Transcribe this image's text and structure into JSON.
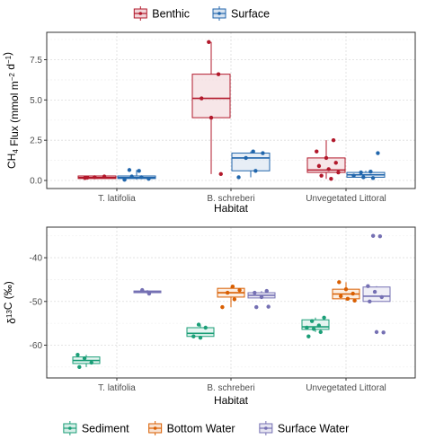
{
  "chart_data": [
    {
      "type": "box",
      "legend": [
        {
          "name": "Benthic",
          "color": "#b2182b"
        },
        {
          "name": "Surface",
          "color": "#2166ac"
        }
      ],
      "legend_position": "top",
      "xlabel": "Habitat",
      "ylabel_parts": [
        "CH",
        "4",
        " Flux (mmol m",
        "−2",
        " d",
        "−1",
        ")"
      ],
      "categories": [
        "T. latifolia",
        "B. schreberi",
        "Unvegetated Littoral"
      ],
      "ylim": [
        -0.5,
        9.2
      ],
      "yticks": [
        0.0,
        2.5,
        5.0,
        7.5
      ],
      "ytick_labels": [
        "0.0",
        "2.5",
        "5.0",
        "7.5"
      ],
      "grid": true,
      "groups": [
        {
          "category": "T. latifolia",
          "series": "Benthic",
          "box": {
            "min": 0.1,
            "q1": 0.12,
            "median": 0.18,
            "q3": 0.28,
            "max": 0.3
          },
          "points": [
            0.15,
            0.2,
            0.25,
            0.18
          ]
        },
        {
          "category": "T. latifolia",
          "series": "Surface",
          "box": {
            "min": 0.05,
            "q1": 0.12,
            "median": 0.18,
            "q3": 0.28,
            "max": 0.65
          },
          "points": [
            0.65,
            0.6,
            0.1,
            0.25,
            0.2,
            0.05
          ]
        },
        {
          "category": "B. schreberi",
          "series": "Benthic",
          "box": {
            "min": 0.4,
            "q1": 3.9,
            "median": 5.1,
            "q3": 6.6,
            "max": 8.6
          },
          "points": [
            8.6,
            6.6,
            5.1,
            3.9,
            0.4
          ]
        },
        {
          "category": "B. schreberi",
          "series": "Surface",
          "box": {
            "min": 0.2,
            "q1": 0.6,
            "median": 1.4,
            "q3": 1.7,
            "max": 1.8
          },
          "points": [
            1.8,
            1.7,
            1.4,
            0.6,
            0.2
          ]
        },
        {
          "category": "Unvegetated Littoral",
          "series": "Benthic",
          "box": {
            "min": 0.1,
            "q1": 0.5,
            "median": 0.65,
            "q3": 1.4,
            "max": 2.5
          },
          "points": [
            2.5,
            1.8,
            1.4,
            1.1,
            0.9,
            0.7,
            0.5,
            0.3,
            0.1
          ]
        },
        {
          "category": "Unvegetated Littoral",
          "series": "Surface",
          "box": {
            "min": 0.15,
            "q1": 0.2,
            "median": 0.35,
            "q3": 0.5,
            "max": 0.6
          },
          "points": [
            1.7,
            0.5,
            0.55,
            0.3,
            0.2,
            0.15
          ]
        }
      ]
    },
    {
      "type": "box",
      "legend": [
        {
          "name": "Sediment",
          "color": "#1b9e77"
        },
        {
          "name": "Bottom Water",
          "color": "#d95f02"
        },
        {
          "name": "Surface Water",
          "color": "#7570b3"
        }
      ],
      "legend_position": "bottom",
      "xlabel": "Habitat",
      "ylabel_parts": [
        "δ",
        "13",
        "C (‰)"
      ],
      "categories": [
        "T. latifolia",
        "B. schreberi",
        "Unvegetated Littoral"
      ],
      "ylim": [
        -67.5,
        -33
      ],
      "yticks": [
        -60,
        -50,
        -40
      ],
      "ytick_labels": [
        "-60",
        "-50",
        "-40"
      ],
      "grid": true,
      "groups": [
        {
          "category": "T. latifolia",
          "series": "Sediment",
          "box": {
            "min": -65,
            "q1": -64.2,
            "median": -63.5,
            "q3": -62.7,
            "max": -62.2
          },
          "points": [
            -62.2,
            -63.0,
            -64.0,
            -65.0
          ]
        },
        {
          "category": "T. latifolia",
          "series": "Surface Water",
          "box": {
            "min": -48.2,
            "q1": -48.0,
            "median": -47.8,
            "q3": -47.6,
            "max": -47.4
          },
          "points": [
            -47.4,
            -48.2
          ]
        },
        {
          "category": "B. schreberi",
          "series": "Sediment",
          "box": {
            "min": -58.3,
            "q1": -58.0,
            "median": -57.3,
            "q3": -56.0,
            "max": -55.3
          },
          "points": [
            -55.3,
            -56.0,
            -58.0,
            -58.3
          ]
        },
        {
          "category": "B. schreberi",
          "series": "Bottom Water",
          "box": {
            "min": -51.3,
            "q1": -49.0,
            "median": -48.0,
            "q3": -47.0,
            "max": -46.6
          },
          "points": [
            -46.6,
            -47.4,
            -48.0,
            -49.5,
            -51.3
          ]
        },
        {
          "category": "B. schreberi",
          "series": "Surface Water",
          "box": {
            "min": -49.4,
            "q1": -49.2,
            "median": -48.6,
            "q3": -48.0,
            "max": -47.6
          },
          "points": [
            -47.6,
            -48.0,
            -49.0,
            -51.2,
            -51.3
          ]
        },
        {
          "category": "Unvegetated Littoral",
          "series": "Sediment",
          "box": {
            "min": -57.0,
            "q1": -56.4,
            "median": -55.8,
            "q3": -54.2,
            "max": -53.7
          },
          "points": [
            -53.7,
            -54.5,
            -55.5,
            -56.0,
            -56.3,
            -57.0,
            -58.0
          ]
        },
        {
          "category": "Unvegetated Littoral",
          "series": "Bottom Water",
          "box": {
            "min": -49.8,
            "q1": -49.4,
            "median": -48.3,
            "q3": -47.2,
            "max": -45.6
          },
          "points": [
            -45.6,
            -47.2,
            -48.2,
            -48.8,
            -49.4,
            -49.8
          ]
        },
        {
          "category": "Unvegetated Littoral",
          "series": "Surface Water",
          "box": {
            "min": -50.0,
            "q1": -50.0,
            "median": -48.8,
            "q3": -46.7,
            "max": -46.5
          },
          "points": [
            -35.0,
            -35.1,
            -46.5,
            -47.8,
            -49.0,
            -50.0,
            -57.0,
            -57.1
          ]
        }
      ]
    }
  ]
}
